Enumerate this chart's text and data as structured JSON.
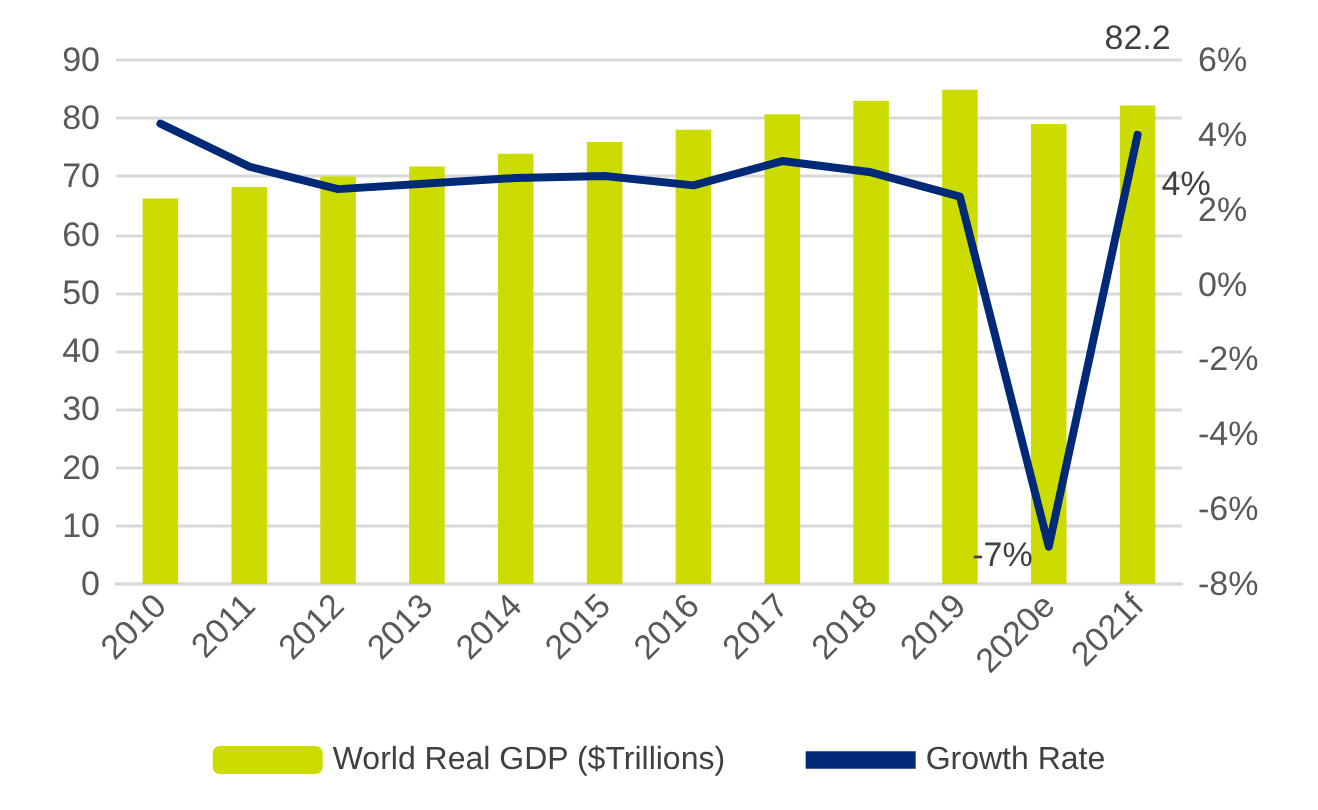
{
  "chart_data": {
    "type": "bar",
    "categories": [
      "2010",
      "2011",
      "2012",
      "2013",
      "2014",
      "2015",
      "2016",
      "2017",
      "2018",
      "2019",
      "2020e",
      "2021f"
    ],
    "series": [
      {
        "name": "World Real GDP ($Trillions)",
        "color": "#ccdc00",
        "values": [
          66.2,
          68.2,
          70,
          71.7,
          73.9,
          75.9,
          78,
          80.7,
          83,
          84.9,
          79,
          82.2
        ],
        "value_labels": [
          null,
          null,
          null,
          null,
          null,
          null,
          null,
          null,
          null,
          null,
          null,
          "82.2"
        ]
      },
      {
        "name": "Growth Rate",
        "type": "line",
        "axis": "y2",
        "color": "#002a77",
        "values": [
          4.3,
          3.15,
          2.55,
          2.7,
          2.85,
          2.9,
          2.65,
          3.3,
          3.0,
          2.35,
          -7,
          4
        ],
        "value_labels": [
          null,
          null,
          null,
          null,
          null,
          null,
          null,
          null,
          null,
          null,
          "-7%",
          "4%"
        ]
      }
    ],
    "ylim": [
      0,
      90
    ],
    "yticks": [
      0,
      10,
      20,
      30,
      40,
      50,
      60,
      70,
      80,
      90
    ],
    "y2lim": [
      -8,
      6
    ],
    "y2ticks": [
      {
        "value": -8,
        "label": "-8%"
      },
      {
        "value": -6,
        "label": "-6%"
      },
      {
        "value": -4,
        "label": "-4%"
      },
      {
        "value": -2,
        "label": "-2%"
      },
      {
        "value": 0,
        "label": "0%"
      },
      {
        "value": 2,
        "label": "2%"
      },
      {
        "value": 4,
        "label": "4%"
      },
      {
        "value": 6,
        "label": "6%"
      }
    ],
    "grid": "y",
    "legend": "bottom",
    "marker": "none",
    "line_style": "solid"
  }
}
